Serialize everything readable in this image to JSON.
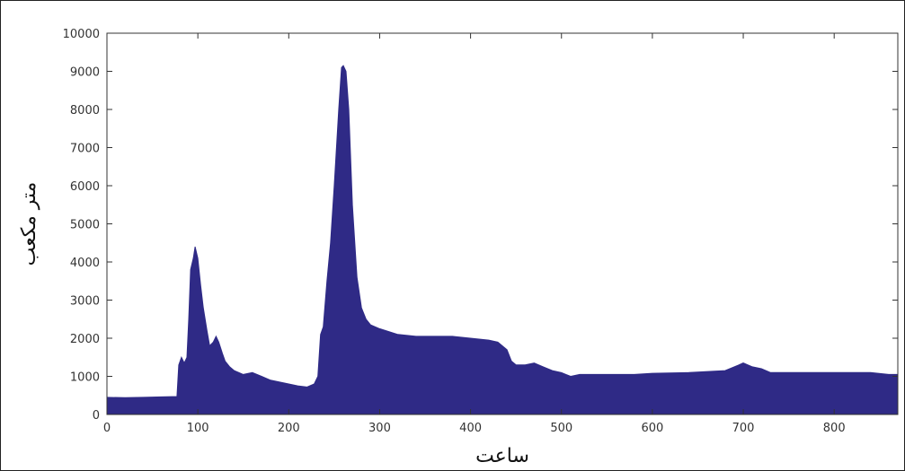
{
  "chart_data": {
    "type": "area",
    "xlabel": "ساعت",
    "ylabel": "متر مکعب",
    "xlim": [
      0,
      870
    ],
    "ylim": [
      0,
      10000
    ],
    "xticks": [
      0,
      100,
      200,
      300,
      400,
      500,
      600,
      700,
      800
    ],
    "yticks": [
      0,
      1000,
      2000,
      3000,
      4000,
      5000,
      6000,
      7000,
      8000,
      9000,
      10000
    ],
    "grid": false,
    "fill_color": "#2f2a86",
    "series": [
      {
        "x": [
          0,
          20,
          40,
          60,
          77,
          79,
          82,
          85,
          88,
          90,
          92,
          95,
          97,
          100,
          103,
          106,
          110,
          113,
          117,
          120,
          123,
          127,
          130,
          135,
          140,
          150,
          160,
          170,
          180,
          190,
          200,
          210,
          220,
          228,
          232,
          235,
          238,
          242,
          246,
          250,
          255,
          258,
          260,
          263,
          266,
          270,
          275,
          280,
          285,
          290,
          300,
          320,
          340,
          360,
          380,
          400,
          420,
          430,
          440,
          445,
          450,
          460,
          470,
          480,
          490,
          500,
          505,
          510,
          520,
          540,
          560,
          580,
          600,
          640,
          680,
          690,
          695,
          700,
          710,
          720,
          730,
          740,
          760,
          780,
          800,
          820,
          840,
          860,
          870
        ],
        "values": [
          450,
          440,
          450,
          460,
          470,
          1300,
          1500,
          1350,
          1500,
          2500,
          3800,
          4100,
          4400,
          4100,
          3400,
          2800,
          2200,
          1800,
          1900,
          2050,
          1900,
          1600,
          1400,
          1250,
          1150,
          1050,
          1100,
          1000,
          900,
          850,
          800,
          750,
          720,
          800,
          1000,
          2100,
          2300,
          3500,
          4500,
          6000,
          8000,
          9100,
          9150,
          9000,
          8000,
          5500,
          3600,
          2800,
          2500,
          2350,
          2250,
          2100,
          2050,
          2050,
          2050,
          2000,
          1950,
          1900,
          1700,
          1400,
          1300,
          1300,
          1350,
          1250,
          1150,
          1100,
          1050,
          1000,
          1050,
          1050,
          1050,
          1050,
          1080,
          1100,
          1150,
          1250,
          1300,
          1350,
          1250,
          1200,
          1100,
          1100,
          1100,
          1100,
          1100,
          1100,
          1100,
          1050,
          1050
        ]
      }
    ]
  }
}
